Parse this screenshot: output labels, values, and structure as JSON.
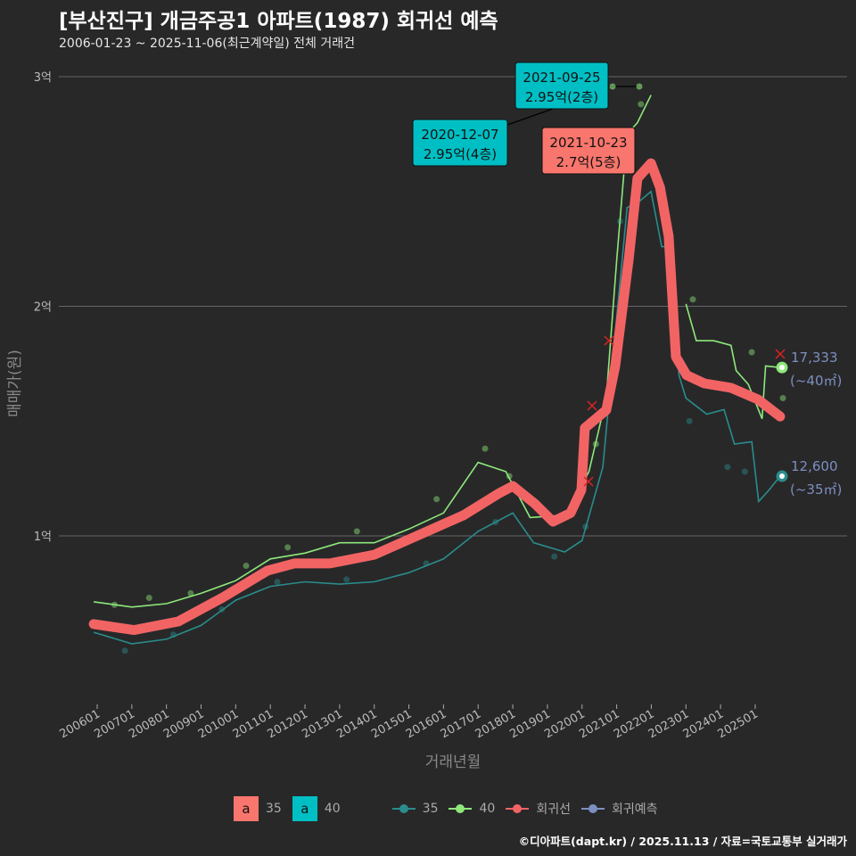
{
  "title": "[부산진구] 개금주공1 아파트(1987) 회귀선 예측",
  "subtitle": "2006-01-23 ~ 2025-11-06(최근계약일) 전체 거래건",
  "credit": "©디아파트(dapt.kr) / 2025.11.13 / 자료=국토교통부 실거래가",
  "colors": {
    "c35": "#2a8c8c",
    "c40": "#8ee87a",
    "reg": "#f26464",
    "pred": "#7d8fc0",
    "box35": "#f8766d",
    "box40": "#00bfc4"
  },
  "chart_data": {
    "type": "line",
    "xlabel": "거래년월",
    "ylabel": "매매가(원)",
    "xlim": [
      2005.9,
      2025.85
    ],
    "ylim": [
      3500,
      31000
    ],
    "xticks": [
      "200601",
      "200701",
      "200801",
      "200901",
      "201001",
      "201101",
      "201201",
      "201301",
      "201401",
      "201501",
      "201601",
      "201701",
      "201801",
      "201901",
      "202001",
      "202101",
      "202201",
      "202301",
      "202401",
      "202501"
    ],
    "yticks": [
      {
        "v": 10000,
        "label": "1억"
      },
      {
        "v": 20000,
        "label": "2억"
      },
      {
        "v": 30000,
        "label": "3억"
      }
    ],
    "series": [
      {
        "name": "35",
        "points": [
          [
            2005.9,
            5800
          ],
          [
            2007,
            5300
          ],
          [
            2008,
            5500
          ],
          [
            2009,
            6100
          ],
          [
            2010,
            7200
          ],
          [
            2011,
            7800
          ],
          [
            2012,
            8000
          ],
          [
            2013,
            7900
          ],
          [
            2014,
            8000
          ],
          [
            2015,
            8400
          ],
          [
            2016,
            9000
          ],
          [
            2017,
            10200
          ],
          [
            2018,
            11000
          ],
          [
            2018.6,
            9700
          ],
          [
            2019.5,
            9300
          ],
          [
            2020,
            9800
          ],
          [
            2020.6,
            13000
          ],
          [
            2021,
            19500
          ],
          [
            2021.3,
            24300
          ],
          [
            2021.6,
            24500
          ],
          [
            2021.99,
            25000
          ],
          [
            2022.3,
            22600
          ],
          [
            2022.6,
            22600
          ],
          [
            2022.8,
            17000
          ],
          [
            2023,
            16000
          ],
          [
            2023.6,
            15300
          ],
          [
            2024.1,
            15500
          ],
          [
            2024.4,
            14000
          ],
          [
            2024.9,
            14100
          ],
          [
            2025.1,
            11500
          ],
          [
            2025.4,
            12000
          ],
          [
            2025.72,
            12600
          ]
        ]
      },
      {
        "name": "40",
        "points": [
          [
            2005.9,
            7130
          ],
          [
            2007,
            6900
          ],
          [
            2008,
            7050
          ],
          [
            2009,
            7500
          ],
          [
            2010,
            8050
          ],
          [
            2011,
            9000
          ],
          [
            2012,
            9250
          ],
          [
            2013,
            9700
          ],
          [
            2014,
            9700
          ],
          [
            2015,
            10300
          ],
          [
            2016,
            11000
          ],
          [
            2017,
            13200
          ],
          [
            2017.8,
            12800
          ],
          [
            2018.5,
            10800
          ],
          [
            2019.5,
            10900
          ],
          [
            2020.2,
            12800
          ],
          [
            2020.7,
            16000
          ],
          [
            2021,
            22000
          ],
          [
            2021.3,
            27500
          ],
          [
            2021.6,
            28000
          ],
          [
            2021.99,
            29200
          ]
        ]
      },
      {
        "name": "40b",
        "points": [
          [
            2023,
            20100
          ],
          [
            2023.3,
            18500
          ],
          [
            2023.8,
            18500
          ],
          [
            2024.3,
            18300
          ],
          [
            2024.45,
            17200
          ],
          [
            2024.8,
            16600
          ],
          [
            2025.2,
            15100
          ],
          [
            2025.3,
            17400
          ],
          [
            2025.72,
            17333
          ]
        ]
      },
      {
        "name": "회귀선",
        "points": [
          [
            2005.9,
            6160
          ],
          [
            2007.06,
            5900
          ],
          [
            2008.34,
            6270
          ],
          [
            2009.63,
            7320
          ],
          [
            2010.92,
            8490
          ],
          [
            2011.69,
            8800
          ],
          [
            2012.72,
            8800
          ],
          [
            2014,
            9180
          ],
          [
            2015.29,
            10040
          ],
          [
            2016.58,
            10900
          ],
          [
            2017.61,
            11860
          ],
          [
            2018,
            12170
          ],
          [
            2018.64,
            11400
          ],
          [
            2019.16,
            10620
          ],
          [
            2019.67,
            11000
          ],
          [
            2019.98,
            12000
          ],
          [
            2020.08,
            14700
          ],
          [
            2020.7,
            15480
          ],
          [
            2020.96,
            17400
          ],
          [
            2021.35,
            22080
          ],
          [
            2021.6,
            25570
          ],
          [
            2021.99,
            26230
          ],
          [
            2022.25,
            25180
          ],
          [
            2022.5,
            23050
          ],
          [
            2022.71,
            17800
          ],
          [
            2023.02,
            17000
          ],
          [
            2023.53,
            16640
          ],
          [
            2024.3,
            16450
          ],
          [
            2025.08,
            15940
          ],
          [
            2025.72,
            15200
          ]
        ]
      }
    ],
    "scatter": [
      [
        2006.5,
        7000,
        "40"
      ],
      [
        2007.5,
        7300,
        "40"
      ],
      [
        2008.7,
        7500,
        "40"
      ],
      [
        2010.3,
        8700,
        "40"
      ],
      [
        2011.5,
        9500,
        "40"
      ],
      [
        2013.5,
        10200,
        "40"
      ],
      [
        2015.8,
        11600,
        "40"
      ],
      [
        2017.2,
        13800,
        "40"
      ],
      [
        2017.9,
        12600,
        "40"
      ],
      [
        2020.4,
        14000,
        "40"
      ],
      [
        2021.2,
        26000,
        "40"
      ],
      [
        2021.7,
        28800,
        "40"
      ],
      [
        2023.2,
        20300,
        "40"
      ],
      [
        2024.9,
        18000,
        "40"
      ],
      [
        2025.8,
        16000,
        "40"
      ],
      [
        2006.8,
        5000,
        "35"
      ],
      [
        2008.2,
        5700,
        "35"
      ],
      [
        2009.6,
        6800,
        "35"
      ],
      [
        2011.2,
        8000,
        "35"
      ],
      [
        2013.2,
        8100,
        "35"
      ],
      [
        2015.5,
        8800,
        "35"
      ],
      [
        2017.5,
        10600,
        "35"
      ],
      [
        2019.2,
        9100,
        "35"
      ],
      [
        2020.1,
        10400,
        "35"
      ],
      [
        2020.8,
        16800,
        "35"
      ],
      [
        2021.1,
        23700,
        "35"
      ],
      [
        2023.1,
        15000,
        "35"
      ],
      [
        2024.2,
        13000,
        "35"
      ],
      [
        2024.7,
        12800,
        "35"
      ]
    ],
    "annotations": [
      {
        "date": "2021-09-25",
        "price": "2.95억(2층)",
        "type": "40",
        "x": 2021.7,
        "y": 29500
      },
      {
        "date": "2020-12-07",
        "price": "2.95억(4층)",
        "type": "40",
        "x": 2021.6,
        "y": 29500
      },
      {
        "date": "2021-10-23",
        "price": "2.7억(5층)",
        "type": "35",
        "x": 2021.8,
        "y": 27000
      }
    ],
    "end_labels": [
      {
        "value": "17,333",
        "area": "(~40㎡)",
        "type": "40",
        "y": 17333
      },
      {
        "value": "12,600",
        "area": "(~35㎡)",
        "type": "35",
        "y": 12600
      }
    ]
  },
  "legend": {
    "box35": "35",
    "box40": "40",
    "box_char": "a",
    "l35": "35",
    "l40": "40",
    "reg": "회귀선",
    "pred": "회귀예측"
  }
}
